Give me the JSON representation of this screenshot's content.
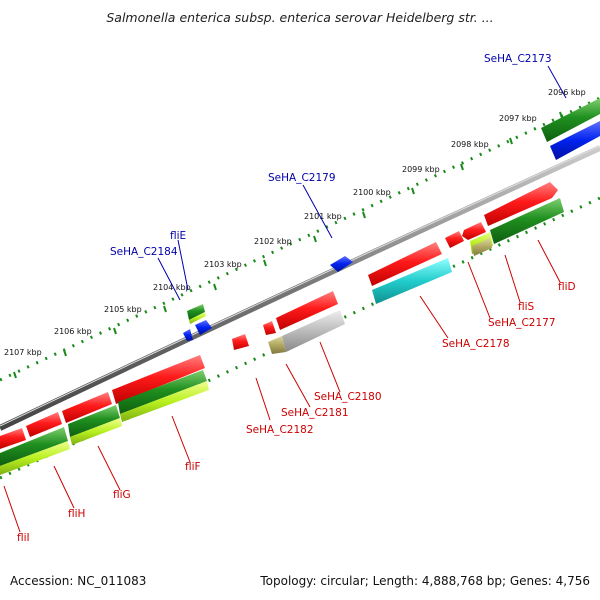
{
  "title": "Salmonella enterica subsp. enterica serovar Heidelberg str. ...",
  "footer": {
    "accession": "Accession: NC_011083",
    "summary": "Topology: circular; Length: 4,888,768 bp; Genes: 4,756"
  },
  "ruler_labels": [
    "2096 kbp",
    "2097 kbp",
    "2098 kbp",
    "2099 kbp",
    "2100 kbp",
    "2101 kbp",
    "2102 kbp",
    "2103 kbp",
    "2104 kbp",
    "2105 kbp",
    "2106 kbp",
    "2107 kbp"
  ],
  "gene_labels": {
    "top": [
      "SeHA_C2173",
      "SeHA_C2179",
      "SeHA_C2184",
      "fliE"
    ],
    "bottom": [
      "fliD",
      "fliS",
      "SeHA_C2177",
      "SeHA_C2178",
      "SeHA_C2180",
      "SeHA_C2181",
      "SeHA_C2182",
      "fliF",
      "fliG",
      "fliH",
      "fliI"
    ]
  },
  "colors": {
    "forward_label": "#0000aa",
    "reverse_label": "#cc0000",
    "backbone": "#888888",
    "gene_red": "#ff1a1a",
    "gene_green": "#1f8f1f",
    "gene_lightgreen": "#b8f020",
    "gene_blue": "#0022ee",
    "gene_cyan": "#22cccc",
    "gene_grey": "#bbbbbb",
    "gene_olive": "#b0a860",
    "ruler_tick": "#1a8a1a"
  }
}
